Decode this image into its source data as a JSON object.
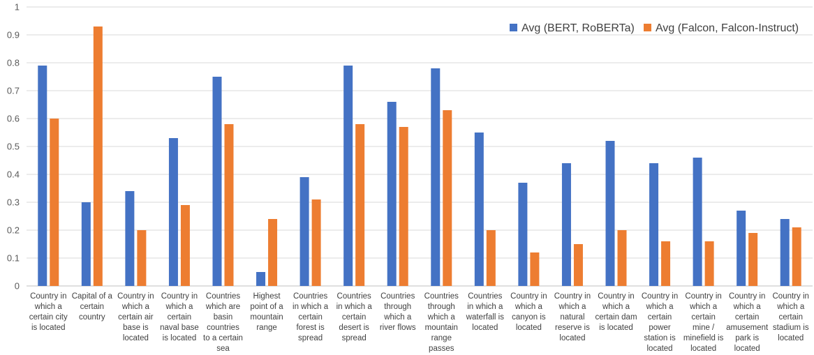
{
  "chart_data": {
    "type": "bar",
    "title": "",
    "xlabel": "",
    "ylabel": "",
    "ylim": [
      0,
      1
    ],
    "yticks": [
      0,
      0.1,
      0.2,
      0.3,
      0.4,
      0.5,
      0.6,
      0.7,
      0.8,
      0.9,
      1
    ],
    "ytick_labels": [
      "0",
      "0.1",
      "0.2",
      "0.3",
      "0.4",
      "0.5",
      "0.6",
      "0.7",
      "0.8",
      "0.9",
      "1"
    ],
    "grid": "horizontal",
    "legend_position": "top-right",
    "categories": [
      [
        "Country in",
        "which a",
        "certain city",
        "is located"
      ],
      [
        "Capital of a",
        "certain",
        "country"
      ],
      [
        "Country in",
        "which a",
        "certain air",
        "base is",
        "located"
      ],
      [
        "Country in",
        "which a",
        "certain",
        "naval base",
        "is located"
      ],
      [
        "Countries",
        "which are",
        "basin",
        "countries",
        "to a certain",
        "sea"
      ],
      [
        "Highest",
        "point of a",
        "mountain",
        "range"
      ],
      [
        "Countries",
        "in which a",
        "certain",
        "forest is",
        "spread"
      ],
      [
        "Countries",
        "in which a",
        "certain",
        "desert is",
        "spread"
      ],
      [
        "Countries",
        "through",
        "which a",
        "river flows"
      ],
      [
        "Countries",
        "through",
        "which a",
        "mountain",
        "range",
        "passes"
      ],
      [
        "Countries",
        "in which a",
        "waterfall is",
        "located"
      ],
      [
        "Country in",
        "which a",
        "canyon is",
        "located"
      ],
      [
        "Country in",
        "which a",
        "natural",
        "reserve is",
        "located"
      ],
      [
        "Country in",
        "which a",
        "certain dam",
        "is located"
      ],
      [
        "Country in",
        "which a",
        "certain",
        "power",
        "station is",
        "located"
      ],
      [
        "Country in",
        "which a",
        "certain",
        "mine /",
        "minefield is",
        "located"
      ],
      [
        "Country in",
        "which a",
        "certain",
        "amusement",
        "park is",
        "located"
      ],
      [
        "Country in",
        "which a",
        "certain",
        "stadium is",
        "located"
      ]
    ],
    "series": [
      {
        "name": "Avg (BERT, RoBERTa)",
        "color": "#4472C4",
        "values": [
          0.79,
          0.3,
          0.34,
          0.53,
          0.75,
          0.05,
          0.39,
          0.79,
          0.66,
          0.78,
          0.55,
          0.37,
          0.44,
          0.52,
          0.44,
          0.46,
          0.27,
          0.24
        ]
      },
      {
        "name": "Avg (Falcon, Falcon-Instruct)",
        "color": "#ED7D31",
        "values": [
          0.6,
          0.93,
          0.2,
          0.29,
          0.58,
          0.24,
          0.31,
          0.58,
          0.57,
          0.63,
          0.2,
          0.12,
          0.15,
          0.2,
          0.16,
          0.16,
          0.19,
          0.21
        ]
      }
    ]
  }
}
